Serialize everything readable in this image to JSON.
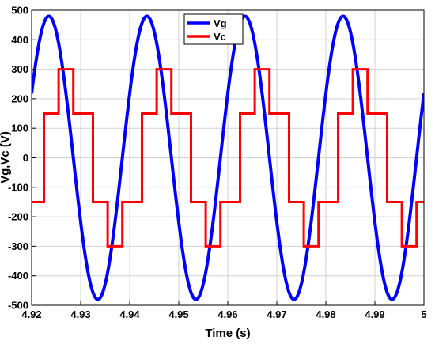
{
  "chart_data": {
    "type": "line",
    "title": "",
    "xlabel": "Time (s)",
    "ylabel": "Vg,Vc (V)",
    "xlim": [
      4.92,
      5.0
    ],
    "ylim": [
      -500,
      500
    ],
    "xticks": [
      4.92,
      4.93,
      4.94,
      4.95,
      4.96,
      4.97,
      4.98,
      4.99,
      5.0
    ],
    "xtick_labels": [
      "4.92",
      "4.93",
      "4.94",
      "4.95",
      "4.96",
      "4.97",
      "4.98",
      "4.99",
      "5"
    ],
    "yticks": [
      -500,
      -400,
      -300,
      -200,
      -100,
      0,
      100,
      200,
      300,
      400,
      500
    ],
    "ytick_labels": [
      "-500",
      "-400",
      "-300",
      "-200",
      "-100",
      "0",
      "100",
      "200",
      "300",
      "400",
      "500"
    ],
    "grid": true,
    "legend_position": "top-center",
    "series": [
      {
        "name": "Vg",
        "color": "#0000ff",
        "kind": "sine",
        "amplitude": 480,
        "frequency_hz": 50,
        "peak_time": 4.9235
      },
      {
        "name": "Vc",
        "color": "#ff0000",
        "kind": "step",
        "period": 0.02,
        "steps": [
          {
            "t": 4.92,
            "v": -150
          },
          {
            "t": 4.9225,
            "v": 150
          },
          {
            "t": 4.9255,
            "v": 300
          },
          {
            "t": 4.9285,
            "v": 150
          },
          {
            "t": 4.9325,
            "v": -150
          },
          {
            "t": 4.9355,
            "v": -300
          },
          {
            "t": 4.9385,
            "v": -150
          },
          {
            "t": 4.94,
            "v": -150
          }
        ]
      }
    ]
  }
}
